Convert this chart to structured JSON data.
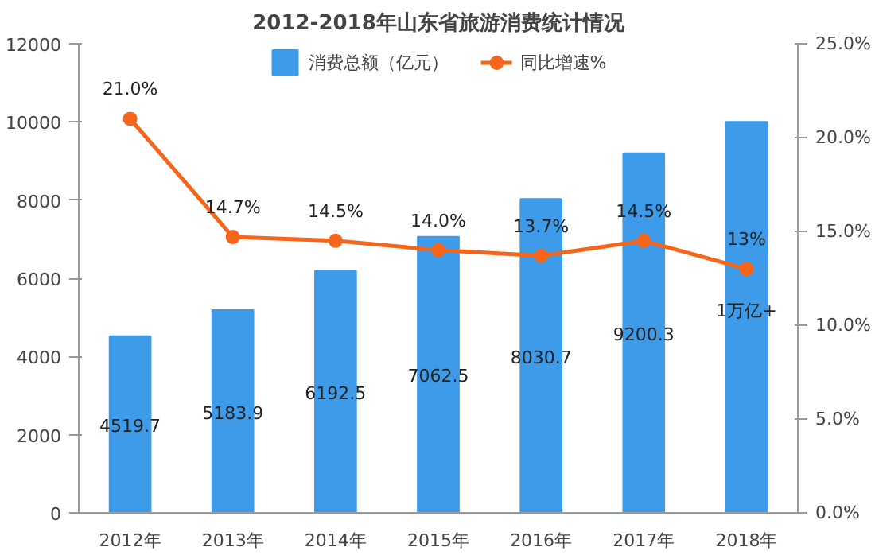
{
  "chart_data": {
    "type": "bar",
    "title": "2012-2018年山东省旅游消费统计情况",
    "categories": [
      "2012年",
      "2013年",
      "2014年",
      "2015年",
      "2016年",
      "2017年",
      "2018年"
    ],
    "legend": "top",
    "annotations": [
      "1万亿+"
    ],
    "grid": false,
    "marker": "circle",
    "line_style": "solid",
    "ylim": [
      0,
      12000
    ],
    "yticks": [
      0,
      2000,
      4000,
      6000,
      8000,
      10000,
      12000
    ],
    "y2lim": [
      0,
      25
    ],
    "y2ticks": [
      {
        "value": 0,
        "label": "0.0%"
      },
      {
        "value": 5,
        "label": "5.0%"
      },
      {
        "value": 10,
        "label": "10.0%"
      },
      {
        "value": 15,
        "label": "15.0%"
      },
      {
        "value": 20,
        "label": "20.0%"
      },
      {
        "value": 25,
        "label": "25.0%"
      }
    ],
    "series": [
      {
        "name": "消费总额（亿元）",
        "color": "#3d9be9",
        "values": [
          4519.7,
          5183.9,
          6192.5,
          7062.5,
          8030.7,
          9200.3,
          10000
        ],
        "value_labels": [
          "4519.7",
          "5183.9",
          "6192.5",
          "7062.5",
          "8030.7",
          "9200.3",
          null
        ]
      },
      {
        "name": "同比增速%",
        "type": "line",
        "axis": "y2",
        "color": "#f5661c",
        "values": [
          21.0,
          14.7,
          14.5,
          14.0,
          13.7,
          14.5,
          13
        ],
        "value_labels": [
          "21.0%",
          "14.7%",
          "14.5%",
          "14.0%",
          "13.7%",
          "14.5%",
          "13%"
        ]
      }
    ]
  }
}
